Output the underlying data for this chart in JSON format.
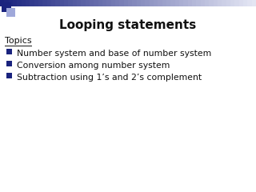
{
  "title": "Looping statements",
  "title_fontsize": 11,
  "title_fontweight": "bold",
  "title_color": "#111111",
  "topics_label": "Topics",
  "topics_fontsize": 8,
  "bullet_items": [
    "Number system and base of number system",
    "Conversion among number system",
    "Subtraction using 1’s and 2’s complement"
  ],
  "bullet_fontsize": 7.8,
  "bullet_color": "#111111",
  "bullet_square_color": "#1a237e",
  "background_color": "#ffffff",
  "top_bar_left_color": "#1a237e",
  "top_bar_right_color": "#e8eaf6",
  "top_left_sq_dark": "#1a237e",
  "top_left_sq_light": "#9fa8da"
}
